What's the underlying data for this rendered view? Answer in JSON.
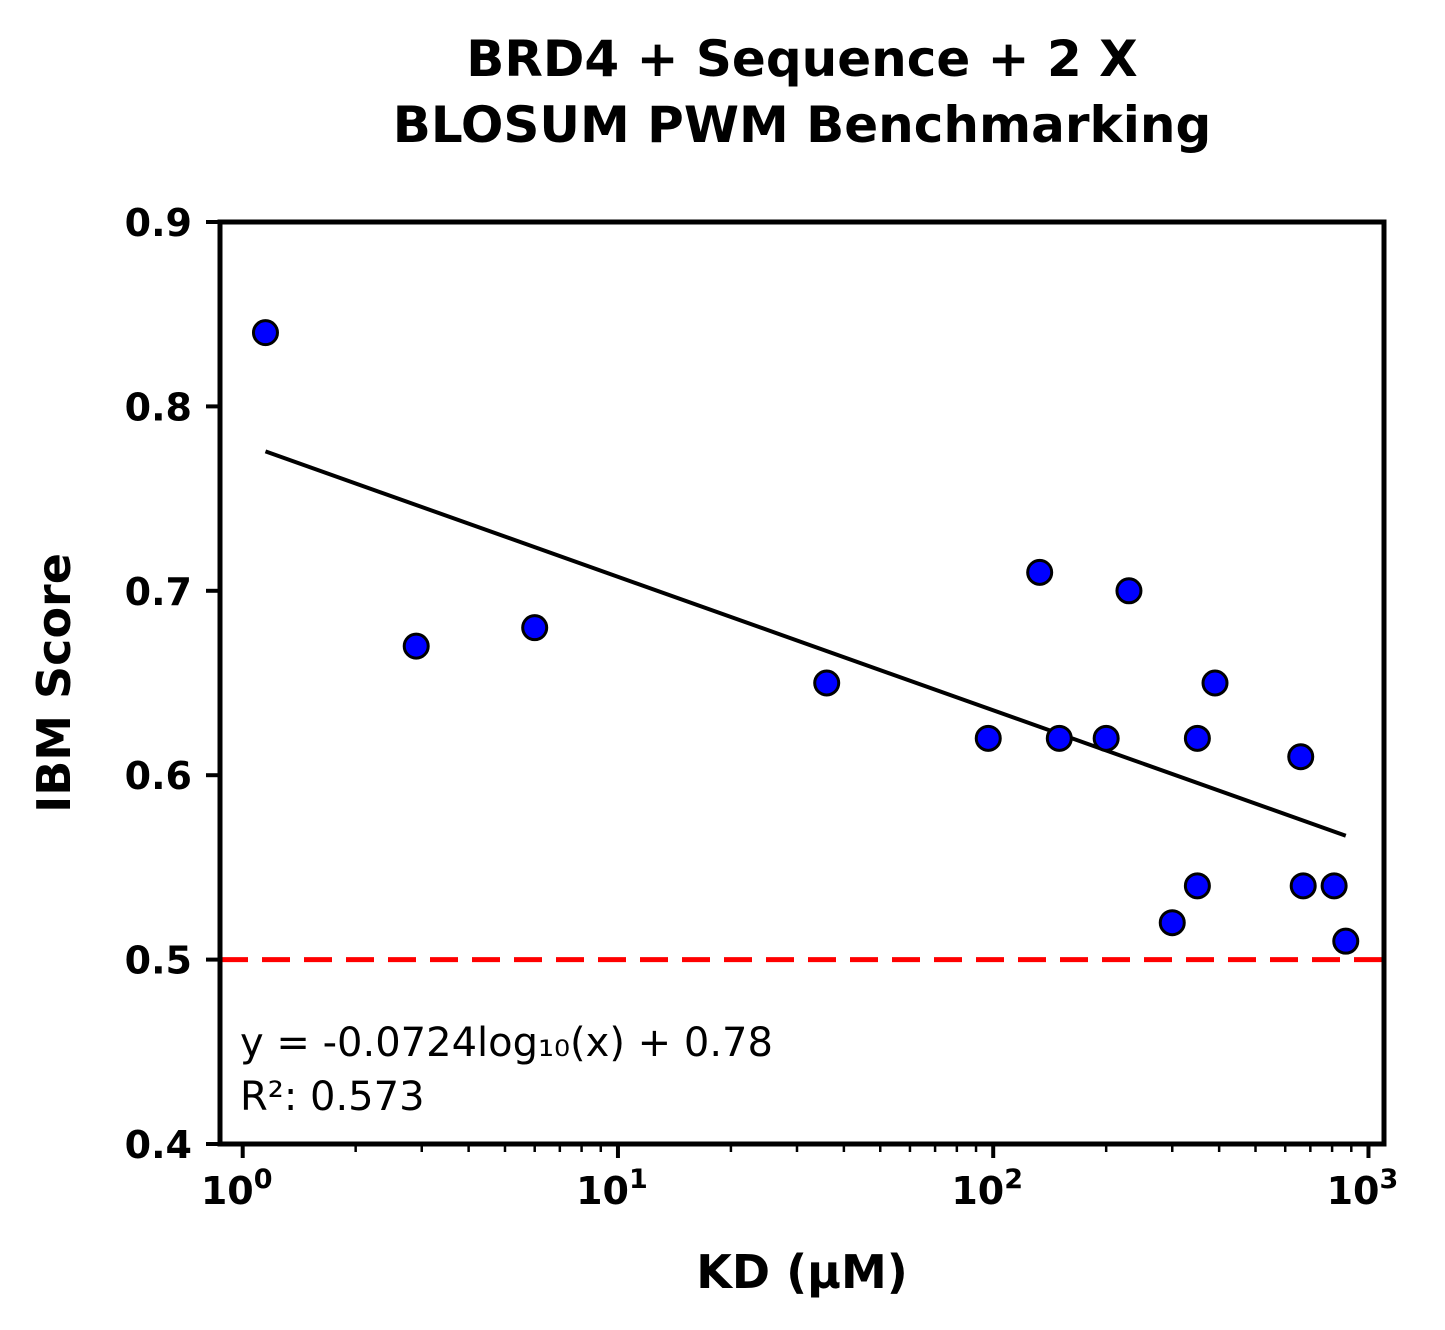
{
  "chart_data": {
    "type": "scatter",
    "title_lines": [
      "BRD4 + Sequence + 2 X",
      "BLOSUM PWM Benchmarking"
    ],
    "xlabel": "KD (µM)",
    "ylabel": "IBM Score",
    "x_scale": "log",
    "xlim": [
      0.87,
      1100
    ],
    "ylim": [
      0.4,
      0.9
    ],
    "x_ticks": [
      {
        "value": 1,
        "base": "10",
        "exp": "0"
      },
      {
        "value": 10,
        "base": "10",
        "exp": "1"
      },
      {
        "value": 100,
        "base": "10",
        "exp": "2"
      },
      {
        "value": 1000,
        "base": "10",
        "exp": "3"
      }
    ],
    "y_ticks": [
      {
        "value": 0.4,
        "label": "0.4"
      },
      {
        "value": 0.5,
        "label": "0.5"
      },
      {
        "value": 0.6,
        "label": "0.6"
      },
      {
        "value": 0.7,
        "label": "0.7"
      },
      {
        "value": 0.8,
        "label": "0.8"
      },
      {
        "value": 0.9,
        "label": "0.9"
      }
    ],
    "points": [
      {
        "x": 1.15,
        "y": 0.84
      },
      {
        "x": 2.9,
        "y": 0.67
      },
      {
        "x": 6.0,
        "y": 0.68
      },
      {
        "x": 36,
        "y": 0.65
      },
      {
        "x": 97,
        "y": 0.62
      },
      {
        "x": 133,
        "y": 0.71
      },
      {
        "x": 150,
        "y": 0.62
      },
      {
        "x": 200,
        "y": 0.62
      },
      {
        "x": 230,
        "y": 0.7
      },
      {
        "x": 300,
        "y": 0.52
      },
      {
        "x": 350,
        "y": 0.62
      },
      {
        "x": 350,
        "y": 0.54
      },
      {
        "x": 390,
        "y": 0.65
      },
      {
        "x": 660,
        "y": 0.61
      },
      {
        "x": 670,
        "y": 0.54
      },
      {
        "x": 810,
        "y": 0.54
      },
      {
        "x": 870,
        "y": 0.51
      }
    ],
    "fit_line": {
      "slope": -0.0724,
      "intercept": 0.78,
      "x_range": [
        1.15,
        870
      ]
    },
    "reference_line": {
      "y": 0.5
    },
    "annotation_lines": [
      "y = -0.0724log₁₀(x) + 0.78",
      "R²: 0.573"
    ],
    "grid": false,
    "colors": {
      "points": "#0000ff",
      "point_edge": "#000000",
      "fit": "#000000",
      "reference": "#ff0000"
    }
  }
}
